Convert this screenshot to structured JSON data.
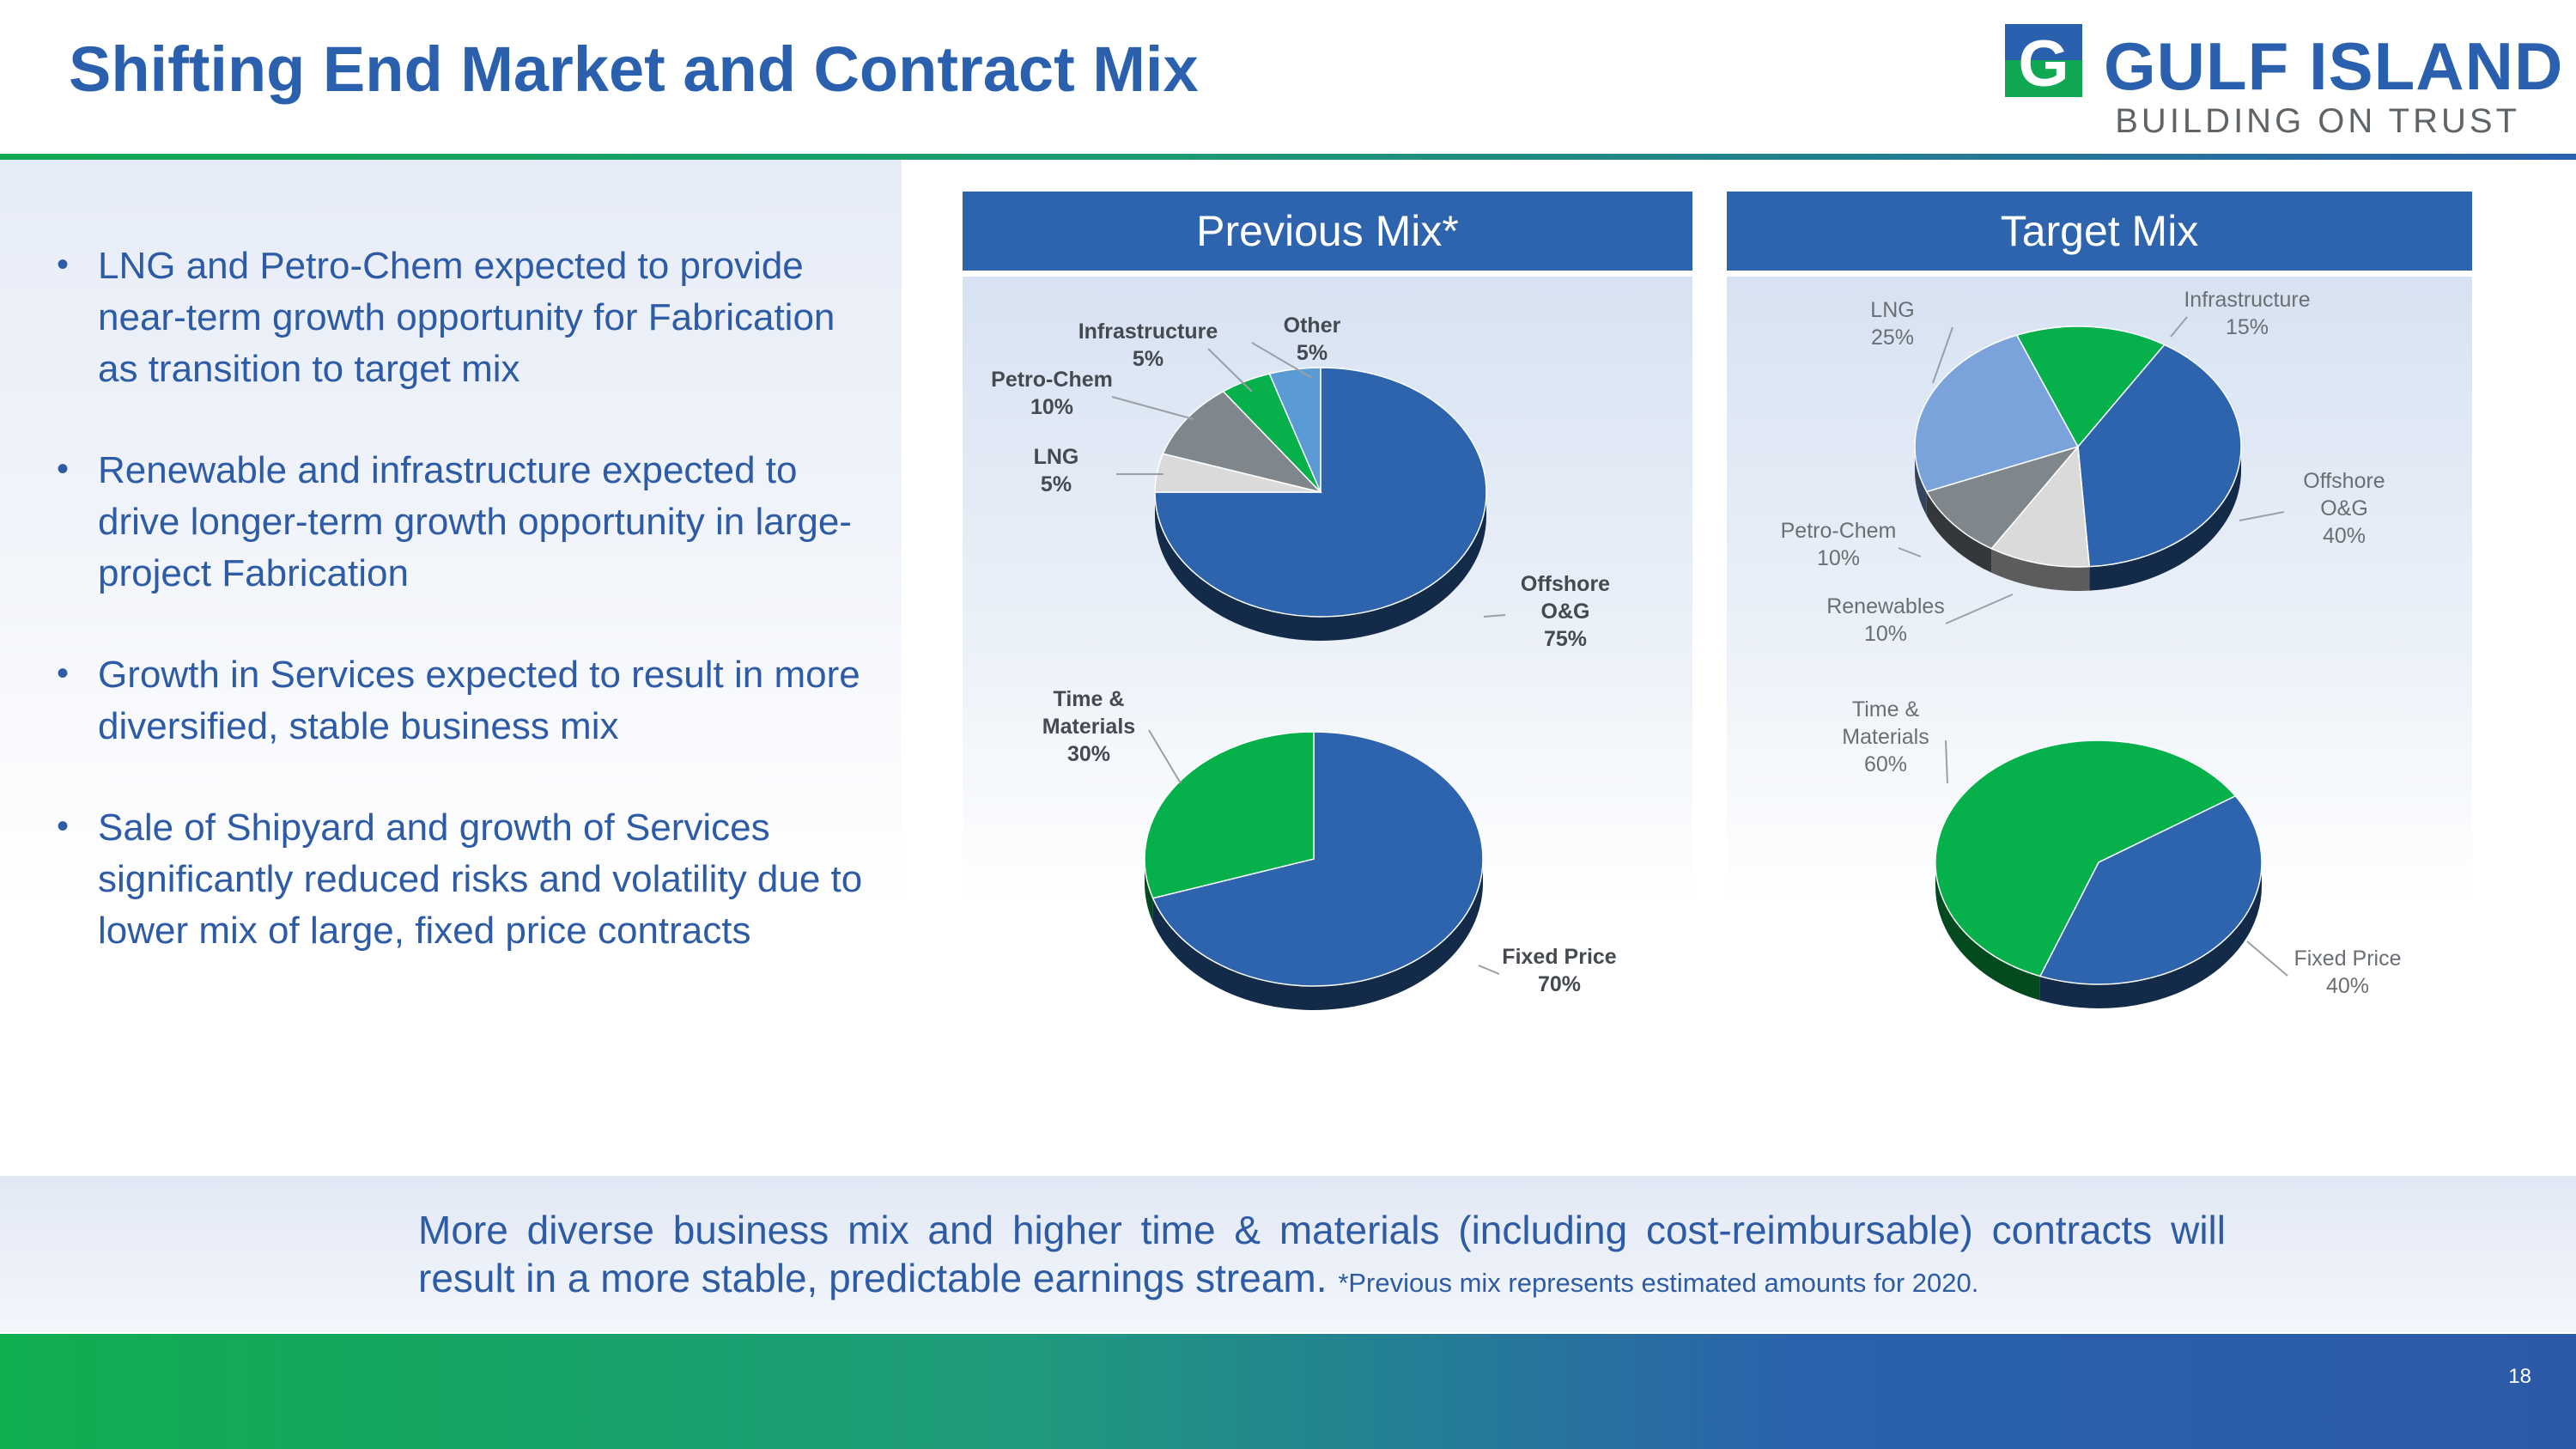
{
  "title": "Shifting End Market and Contract Mix",
  "logo": {
    "name": "GULF ISLAND",
    "tagline": "BUILDING ON TRUST",
    "mark": "G"
  },
  "bullets": [
    "LNG and Petro-Chem expected to provide near-term growth opportunity for Fabrication as transition to target mix",
    "Renewable and infrastructure expected to drive longer-term growth opportunity in large-project Fabrication",
    "Growth in Services expected to result in more diversified, stable business mix",
    "Sale of Shipyard and growth of Services significantly reduced risks and volatility due to lower mix of large, fixed price contracts"
  ],
  "bullet_symbol": "•",
  "panels": {
    "previous_title": "Previous Mix*",
    "target_title": "Target Mix"
  },
  "banner": {
    "text": "More diverse business mix and higher time & materials (including cost-reimbursable) contracts will result in a more stable, predictable earnings stream.",
    "footnote": "*Previous mix represents estimated amounts for 2020."
  },
  "page_number": "18",
  "colors": {
    "blue": "#2e63ae",
    "light_blue": "#7aa3dc",
    "green": "#06b04a",
    "gray": "#7f868c",
    "light_gray": "#dadada",
    "sky_blue": "#5b9bd5"
  },
  "chart_data": [
    {
      "type": "pie",
      "title": "Previous Mix* - End Market",
      "labels": [
        "Offshore O&G",
        "LNG",
        "Petro-Chem",
        "Infrastructure",
        "Other"
      ],
      "values": [
        75,
        5,
        10,
        5,
        5
      ],
      "colors": [
        "#2e63ae",
        "#dadada",
        "#7f868c",
        "#06b04a",
        "#5b9bd5"
      ],
      "display_labels": [
        [
          "Offshore",
          "O&G",
          "75%"
        ],
        [
          "LNG",
          "5%"
        ],
        [
          "Petro-Chem",
          "10%"
        ],
        [
          "Infrastructure",
          "5%"
        ],
        [
          "Other",
          "5%"
        ]
      ]
    },
    {
      "type": "pie",
      "title": "Previous Mix* - Contract Type",
      "labels": [
        "Fixed Price",
        "Time & Materials"
      ],
      "values": [
        70,
        30
      ],
      "colors": [
        "#2e63ae",
        "#06b04a"
      ],
      "display_labels": [
        [
          "Fixed Price",
          "70%"
        ],
        [
          "Time &",
          "Materials",
          "30%"
        ]
      ]
    },
    {
      "type": "pie",
      "title": "Target Mix - End Market",
      "labels": [
        "Offshore O&G",
        "Renewables",
        "Petro-Chem",
        "LNG",
        "Infrastructure"
      ],
      "values": [
        40,
        10,
        10,
        25,
        15
      ],
      "colors": [
        "#2e63ae",
        "#dadada",
        "#7f868c",
        "#7aa3dc",
        "#06b04a"
      ],
      "display_labels": [
        [
          "Offshore",
          "O&G",
          "40%"
        ],
        [
          "Renewables",
          "10%"
        ],
        [
          "Petro-Chem",
          "10%"
        ],
        [
          "LNG",
          "25%"
        ],
        [
          "Infrastructure",
          "15%"
        ]
      ]
    },
    {
      "type": "pie",
      "title": "Target Mix - Contract Type",
      "labels": [
        "Fixed Price",
        "Time & Materials"
      ],
      "values": [
        40,
        60
      ],
      "colors": [
        "#2e63ae",
        "#06b04a"
      ],
      "display_labels": [
        [
          "Fixed Price",
          "40%"
        ],
        [
          "Time &",
          "Materials",
          "60%"
        ]
      ]
    }
  ]
}
